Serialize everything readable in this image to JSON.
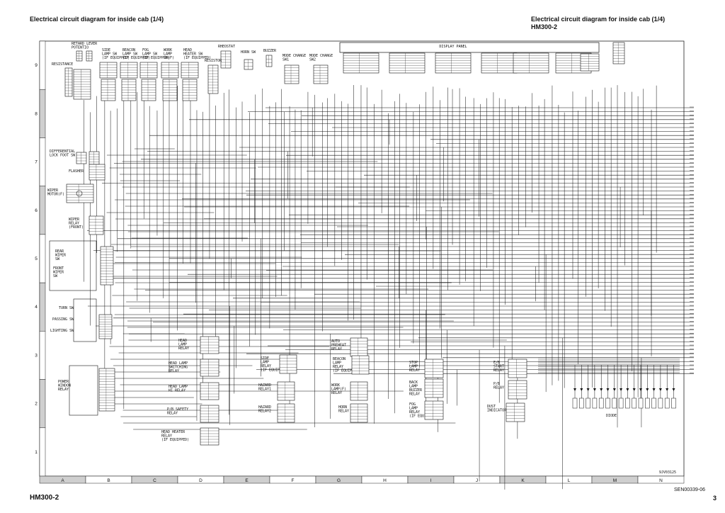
{
  "header": {
    "title_left": "Electrical circuit diagram for inside cab (1/4)",
    "title_right": "Electrical circuit diagram for inside cab (1/4)",
    "model_right": "HM300-2"
  },
  "footer": {
    "model": "HM300-2",
    "doc_number": "SEN00339-06",
    "page": "3",
    "drawing_code": "9JV03125"
  },
  "grid": {
    "rows": [
      "9",
      "8",
      "7",
      "6",
      "5",
      "4",
      "3",
      "2",
      "1"
    ],
    "columns": [
      "A",
      "B",
      "C",
      "D",
      "E",
      "F",
      "G",
      "H",
      "I",
      "J",
      "K",
      "L",
      "M",
      "N"
    ]
  },
  "components": [
    {
      "id": "retard",
      "label": "RETARD LEVER\nPOTENTIO"
    },
    {
      "id": "resistance",
      "label": "RESISTANCE"
    },
    {
      "id": "side-lamp-sw",
      "label": "SIDE\nLAMP SW\n(IF EQUIPPED)"
    },
    {
      "id": "beacon-lamp-sw",
      "label": "BEACON\nLAMP SW\n(IF EQUIPPED)"
    },
    {
      "id": "fog-lamp-sw",
      "label": "FOG\nLAMP SW\n(IF EQUIPPED)"
    },
    {
      "id": "work-lamp-sw",
      "label": "WORK\nLAMP\nSW(F)"
    },
    {
      "id": "head-heater-sw",
      "label": "HEAD\nHEATER SW\n(IF EQUIPPED)"
    },
    {
      "id": "rheostat",
      "label": "RHEOSTAT"
    },
    {
      "id": "resistor",
      "label": "RESISTOR"
    },
    {
      "id": "horn-sw",
      "label": "HORN SW"
    },
    {
      "id": "buzzer",
      "label": "BUZZER"
    },
    {
      "id": "mode-change-1",
      "label": "MODE CHANGE\nSW1"
    },
    {
      "id": "mode-change-2",
      "label": "MODE CHANGE\nSW2"
    },
    {
      "id": "display-panel",
      "label": "DISPLAY PANEL"
    },
    {
      "id": "diff-lock",
      "label": "DIFFERENTIAL\nLOCK FOOT SW"
    },
    {
      "id": "flasher",
      "label": "FLASHER"
    },
    {
      "id": "wiper-motor",
      "label": "WIPER\nMOTOR(F)"
    },
    {
      "id": "wiper-relay",
      "label": "WIPER\nRELAY\n(FRONT)"
    },
    {
      "id": "rear-wiper",
      "label": "REAR\nWIPER\nSW"
    },
    {
      "id": "front-wiper",
      "label": "FRONT\nWIPER\nSW"
    },
    {
      "id": "turn-sw",
      "label": "TURN SW"
    },
    {
      "id": "passing-sw",
      "label": "PASSING SW"
    },
    {
      "id": "lighting-sw",
      "label": "LIGHTING SW"
    },
    {
      "id": "power-window",
      "label": "POWER\nWINDOW\nRELAY"
    },
    {
      "id": "head-lamp-relay",
      "label": "HEAD\nLAMP\nRELAY"
    },
    {
      "id": "head-lamp-switching",
      "label": "HEAD LAMP\nSWITCHING\nRELAY"
    },
    {
      "id": "head-lamp-hi",
      "label": "HEAD LAMP\nHI RELAY"
    },
    {
      "id": "pb-safety",
      "label": "P/B SAFETY\nRELAY"
    },
    {
      "id": "head-heater-relay",
      "label": "HEAD HEATER\nRELAY\n(IF EQUIPPED)"
    },
    {
      "id": "side-lamp-relay",
      "label": "SIDE\nLAMP\nRELAY\n(IF EQUIPPED)"
    },
    {
      "id": "hazard-1",
      "label": "HAZARD\nRELAY1"
    },
    {
      "id": "hazard-2",
      "label": "HAZARD\nRELAY2"
    },
    {
      "id": "auto-preheat",
      "label": "AUTO\nPREHEAT\nRELAY"
    },
    {
      "id": "beacon-relay",
      "label": "BEACON\nLAMP\nRELAY\n(IF EQUIPPED)"
    },
    {
      "id": "work-lamp-relay",
      "label": "WORK\nLAMP(F)\nRELAY"
    },
    {
      "id": "horn-relay",
      "label": "HORN\nRELAY"
    },
    {
      "id": "stop-lamp",
      "label": "STOP\nLAMP\nRELAY"
    },
    {
      "id": "back-lamp",
      "label": "BACK\nLAMP\nBUZZER\nRELAY"
    },
    {
      "id": "fog-relay",
      "label": "FOG\nLAMP\nRELAY\n(IF EQUIPPED)"
    },
    {
      "id": "dust",
      "label": "DUST\nINDICATOR"
    },
    {
      "id": "eb-start",
      "label": "E/B\nSTART\nRELAY"
    },
    {
      "id": "pb-relay",
      "label": "P/B\nRELAY"
    },
    {
      "id": "diode",
      "label": "DIODE"
    }
  ]
}
